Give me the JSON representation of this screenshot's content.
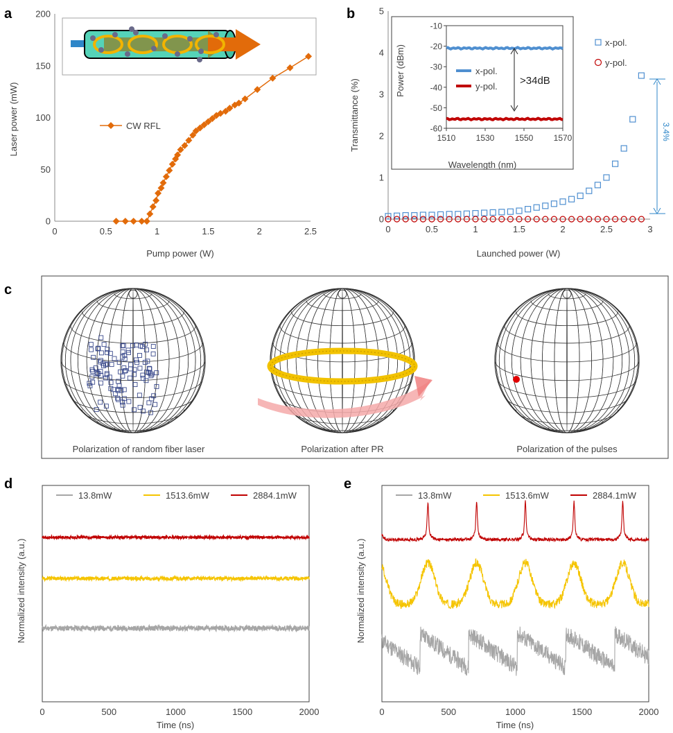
{
  "panels": [
    "a",
    "b",
    "c",
    "d",
    "e"
  ],
  "colors": {
    "orange": "#e26b0a",
    "blue": "#4f8fd0",
    "red": "#c00000",
    "yellow": "#f5c400",
    "gray": "#a6a6a6",
    "navy": "#3a4a8c",
    "axis": "#404040"
  },
  "chart_data": [
    {
      "id": "a",
      "type": "line",
      "title": "",
      "xlabel": "Pump power (W)",
      "ylabel": "Laser power (mW)",
      "xlim": [
        0,
        2.5
      ],
      "ylim": [
        0,
        200
      ],
      "xticks": [
        0,
        0.5,
        1,
        1.5,
        2,
        2.5
      ],
      "yticks": [
        0,
        50,
        100,
        150,
        200
      ],
      "legend_position": "center-left",
      "series": [
        {
          "name": "CW RFL",
          "color": "#e26b0a",
          "marker": "diamond",
          "x": [
            0.6,
            0.69,
            0.77,
            0.85,
            0.9,
            0.93,
            0.96,
            0.99,
            1.01,
            1.04,
            1.06,
            1.09,
            1.12,
            1.15,
            1.18,
            1.2,
            1.23,
            1.27,
            1.31,
            1.35,
            1.38,
            1.42,
            1.46,
            1.5,
            1.54,
            1.58,
            1.62,
            1.67,
            1.71,
            1.76,
            1.8,
            1.86,
            1.98,
            2.13,
            2.3,
            2.48
          ],
          "y": [
            0,
            0,
            0,
            0,
            0,
            7,
            14,
            20,
            27,
            32,
            37,
            43,
            49,
            55,
            60,
            64,
            69,
            73,
            78,
            83,
            87,
            90,
            93,
            96,
            99,
            102,
            104,
            106,
            109,
            112,
            114,
            118,
            127,
            138,
            148,
            159
          ]
        }
      ]
    },
    {
      "id": "b-inset",
      "type": "line",
      "title": "",
      "xlabel": "Wavelength (nm)",
      "ylabel": "Power (dBm)",
      "xlim": [
        1510,
        1570
      ],
      "ylim": [
        -60,
        -10
      ],
      "xticks": [
        1510,
        1530,
        1550,
        1570
      ],
      "yticks": [
        -60,
        -50,
        -40,
        -30,
        -20,
        -10
      ],
      "annotation": ">34dB",
      "series": [
        {
          "name": "x-pol.",
          "color": "#4f8fd0",
          "x": [
            1510,
            1570
          ],
          "y": [
            -21,
            -21
          ]
        },
        {
          "name": "y-pol.",
          "color": "#c00000",
          "x": [
            1510,
            1570
          ],
          "y": [
            -55.5,
            -55.5
          ]
        }
      ]
    },
    {
      "id": "b",
      "type": "scatter",
      "title": "",
      "xlabel": "Launched power (W)",
      "ylabel": "Transmittance (%)",
      "xlim": [
        0,
        3
      ],
      "ylim": [
        0,
        5
      ],
      "xticks": [
        0,
        0.5,
        1,
        1.5,
        2,
        2.5,
        3
      ],
      "yticks": [
        0,
        1,
        2,
        3,
        4,
        5
      ],
      "legend_position": "top-right",
      "annotation": "3.4%",
      "series": [
        {
          "name": "x-pol.",
          "color": "#4f8fd0",
          "marker": "square",
          "x": [
            0,
            0.1,
            0.2,
            0.3,
            0.4,
            0.5,
            0.6,
            0.7,
            0.8,
            0.9,
            1.0,
            1.1,
            1.2,
            1.3,
            1.4,
            1.5,
            1.6,
            1.7,
            1.8,
            1.9,
            2.0,
            2.1,
            2.2,
            2.3,
            2.4,
            2.5,
            2.6,
            2.7,
            2.8,
            2.9
          ],
          "y": [
            0.07,
            0.08,
            0.09,
            0.09,
            0.1,
            0.1,
            0.11,
            0.12,
            0.12,
            0.13,
            0.14,
            0.15,
            0.16,
            0.17,
            0.18,
            0.2,
            0.24,
            0.28,
            0.32,
            0.37,
            0.42,
            0.48,
            0.56,
            0.68,
            0.82,
            1.0,
            1.33,
            1.7,
            2.4,
            3.45
          ]
        },
        {
          "name": "y-pol.",
          "color": "#c00000",
          "marker": "circle",
          "x": [
            0,
            0.1,
            0.2,
            0.3,
            0.4,
            0.5,
            0.6,
            0.7,
            0.8,
            0.9,
            1.0,
            1.1,
            1.2,
            1.3,
            1.4,
            1.5,
            1.6,
            1.7,
            1.8,
            1.9,
            2.0,
            2.1,
            2.2,
            2.3,
            2.4,
            2.5,
            2.6,
            2.7,
            2.8,
            2.9
          ],
          "y": [
            0,
            0,
            0,
            0,
            0,
            0,
            0,
            0,
            0,
            0,
            0,
            0,
            0,
            0,
            0,
            0,
            0,
            0,
            0,
            0,
            0,
            0,
            0,
            0,
            0,
            0,
            0,
            0,
            0,
            0
          ]
        }
      ]
    },
    {
      "id": "c",
      "type": "diagram",
      "captions": [
        "Polarization of random fiber laser",
        "Polarization after  PR",
        "Polarization of the pulses"
      ]
    },
    {
      "id": "d",
      "type": "line",
      "title": "",
      "xlabel": "Time (ns)",
      "ylabel": "Normalized intensity (a.u.)",
      "xlim": [
        0,
        2000
      ],
      "xticks": [
        0,
        500,
        1000,
        1500,
        2000
      ],
      "ylim": [
        0,
        1
      ],
      "legend_position": "top",
      "series": [
        {
          "name": "13.8mW",
          "color": "#a6a6a6",
          "level": 0.34,
          "noise": 0.012
        },
        {
          "name": "1513.6mW",
          "color": "#f5c400",
          "level": 0.57,
          "noise": 0.008
        },
        {
          "name": "2884.1mW",
          "color": "#c00000",
          "level": 0.76,
          "noise": 0.006
        }
      ]
    },
    {
      "id": "e",
      "type": "line",
      "title": "",
      "xlabel": "Time (ns)",
      "ylabel": "Normalized intensity (a.u.)",
      "xlim": [
        0,
        2000
      ],
      "xticks": [
        0,
        500,
        1000,
        1500,
        2000
      ],
      "ylim": [
        0,
        1
      ],
      "legend_position": "top",
      "pulse_period_ns": 365,
      "pulse_first_ns": 345,
      "series": [
        {
          "name": "13.8mW",
          "color": "#a6a6a6",
          "base": 0.22,
          "amp": 0.18
        },
        {
          "name": "1513.6mW",
          "color": "#f5c400",
          "base": 0.48,
          "amp": 0.24
        },
        {
          "name": "2884.1mW",
          "color": "#c00000",
          "base": 0.75,
          "amp": 0.14
        }
      ]
    }
  ]
}
